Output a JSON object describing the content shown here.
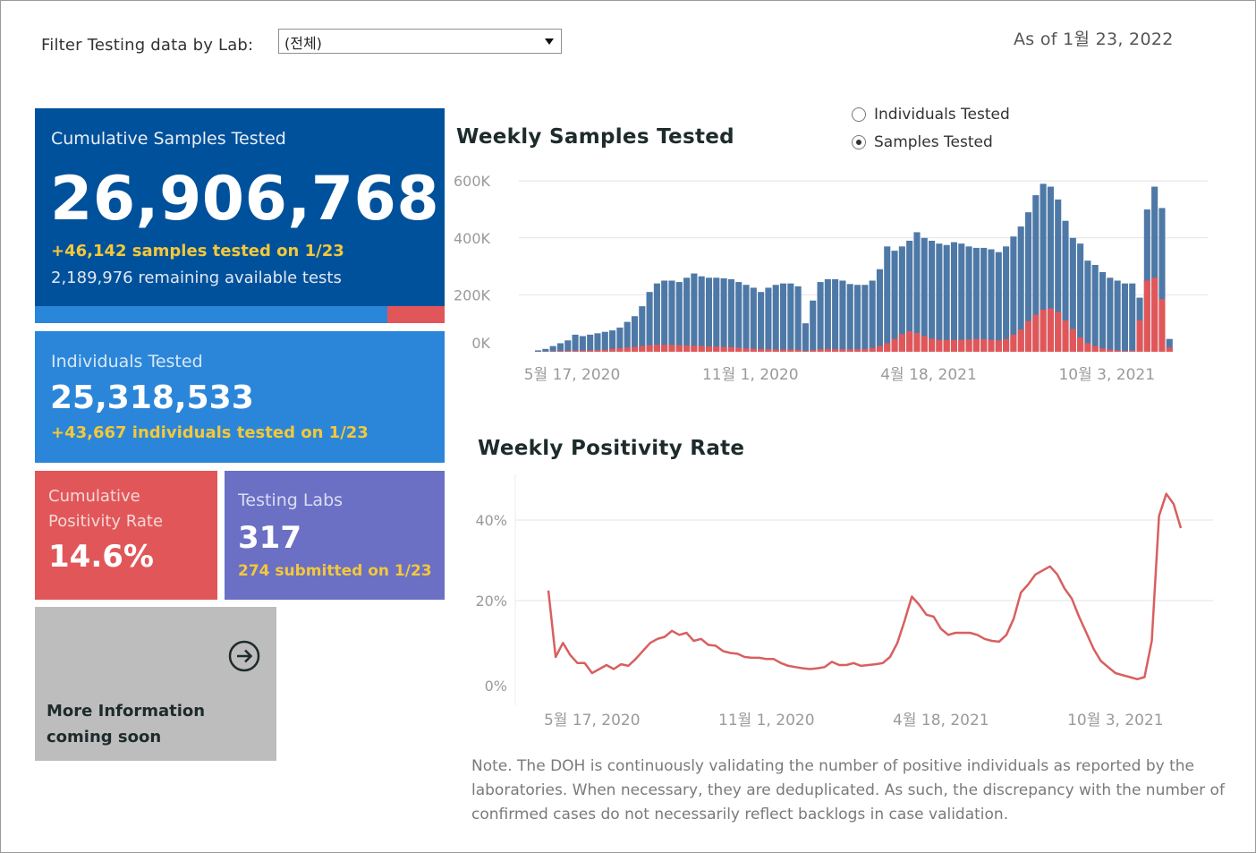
{
  "filter": {
    "label": "Filter Testing data by Lab:",
    "selected": "(전체)"
  },
  "as_of": "As of 1월 23, 2022",
  "cards": {
    "samples": {
      "title": "Cumulative Samples Tested",
      "value": "26,906,768",
      "today": "+46,142 samples tested on 1/23",
      "remaining": "2,189,976 remaining available tests",
      "remaining_fraction": 0.14
    },
    "individuals": {
      "title": "Individuals Tested",
      "value": "25,318,533",
      "today": "+43,667  individuals  tested on 1/23"
    },
    "positivity": {
      "title": "Cumulative Positivity Rate",
      "value": "14.6%"
    },
    "labs": {
      "title": "Testing Labs",
      "value": "317",
      "today": "274 submitted on 1/23"
    },
    "more": {
      "line1": "More Information",
      "line2": "coming soon",
      "icon": "arrow-circle-right-icon"
    }
  },
  "toggle": {
    "options": [
      "Individuals Tested",
      "Samples Tested"
    ],
    "selected": "Samples Tested"
  },
  "colors": {
    "samples": "#4e79a7",
    "positive": "#e15759",
    "positivity_line": "#d95f5f"
  },
  "note": "Note. The DOH is continuously validating the number of positive individuals as reported by the laboratories. When necessary, they are deduplicated. As such, the discrepancy with the number of confirmed cases do not necessarily reflect backlogs in case validation.",
  "chart_data": [
    {
      "type": "bar",
      "title": "Weekly Samples Tested",
      "x_start_week": "2020-04-12",
      "x_ticks": [
        "5월 17, 2020",
        "11월 1, 2020",
        "4월 18, 2021",
        "10월 3, 2021"
      ],
      "x_tick_week_index": [
        5,
        29,
        53,
        77
      ],
      "y_ticks": [
        "600K",
        "400K",
        "200K",
        "0K"
      ],
      "y_tick_values": [
        600000,
        400000,
        200000,
        0
      ],
      "ylim": [
        0,
        610000
      ],
      "series": [
        {
          "name": "Samples Tested",
          "values": [
            5000,
            10000,
            20000,
            30000,
            40000,
            60000,
            55000,
            60000,
            65000,
            70000,
            75000,
            85000,
            105000,
            125000,
            160000,
            210000,
            240000,
            250000,
            250000,
            245000,
            260000,
            275000,
            265000,
            260000,
            260000,
            258000,
            255000,
            245000,
            235000,
            225000,
            210000,
            225000,
            235000,
            240000,
            240000,
            230000,
            100000,
            180000,
            245000,
            255000,
            255000,
            250000,
            238000,
            235000,
            235000,
            250000,
            290000,
            370000,
            355000,
            370000,
            390000,
            420000,
            400000,
            390000,
            380000,
            375000,
            385000,
            380000,
            370000,
            365000,
            365000,
            360000,
            350000,
            370000,
            405000,
            440000,
            490000,
            550000,
            590000,
            580000,
            535000,
            460000,
            400000,
            380000,
            320000,
            305000,
            280000,
            260000,
            250000,
            240000,
            240000,
            190000,
            500000,
            580000,
            505000,
            45000
          ]
        },
        {
          "name": "Positive",
          "values": [
            500,
            1000,
            1500,
            2500,
            3000,
            4000,
            4500,
            5000,
            6000,
            7000,
            10000,
            13000,
            15000,
            17000,
            20000,
            23000,
            25000,
            25000,
            24000,
            23000,
            22000,
            22000,
            20000,
            19000,
            18000,
            17000,
            16000,
            14000,
            12000,
            11000,
            9500,
            9000,
            8500,
            8000,
            8000,
            7000,
            3000,
            6000,
            9000,
            10000,
            9500,
            9000,
            9000,
            9000,
            10000,
            13000,
            20000,
            30000,
            45000,
            62000,
            72000,
            66000,
            55000,
            46000,
            42000,
            42000,
            42000,
            42000,
            43000,
            45000,
            44000,
            42000,
            40000,
            45000,
            60000,
            78000,
            108000,
            130000,
            148000,
            152000,
            140000,
            110000,
            80000,
            50000,
            30000,
            20000,
            12000,
            8000,
            5000,
            3000,
            4000,
            110000,
            250000,
            260000,
            185000,
            15000
          ]
        }
      ]
    },
    {
      "type": "line",
      "title": "Weekly Positivity Rate",
      "x_start_week": "2020-04-05",
      "x_ticks": [
        "5월 17, 2020",
        "11월 1, 2020",
        "4월 18, 2021",
        "10월 3, 2021"
      ],
      "x_tick_week_index": [
        6,
        30,
        54,
        78
      ],
      "y_ticks": [
        "40%",
        "20%",
        "0%"
      ],
      "y_tick_values": [
        40,
        20,
        0
      ],
      "ylim": [
        0,
        48
      ],
      "series": [
        {
          "name": "Positivity Rate",
          "values": [
            22.5,
            6.0,
            9.5,
            6.5,
            4.5,
            4.5,
            2.0,
            3.0,
            4.0,
            3.0,
            4.2,
            3.8,
            5.5,
            7.5,
            9.5,
            10.5,
            11.0,
            12.5,
            11.5,
            12.0,
            10.0,
            10.5,
            9.0,
            8.8,
            7.5,
            7.0,
            6.8,
            6.0,
            5.8,
            5.8,
            5.5,
            5.5,
            4.5,
            3.8,
            3.5,
            3.2,
            3.0,
            3.2,
            3.5,
            4.8,
            4.0,
            4.0,
            4.5,
            3.8,
            4.0,
            4.2,
            4.5,
            6.0,
            9.5,
            15.0,
            21.0,
            19.0,
            16.5,
            16.0,
            13.0,
            11.5,
            12.0,
            12.0,
            12.0,
            11.5,
            10.5,
            10.0,
            9.8,
            11.5,
            15.5,
            22.0,
            24.0,
            26.5,
            27.5,
            28.5,
            26.5,
            23.0,
            20.5,
            16.0,
            12.0,
            8.0,
            5.0,
            3.5,
            2.0,
            1.5,
            1.0,
            0.5,
            1.0,
            10.0,
            41.0,
            46.5,
            44.0,
            38.0
          ]
        }
      ]
    }
  ]
}
